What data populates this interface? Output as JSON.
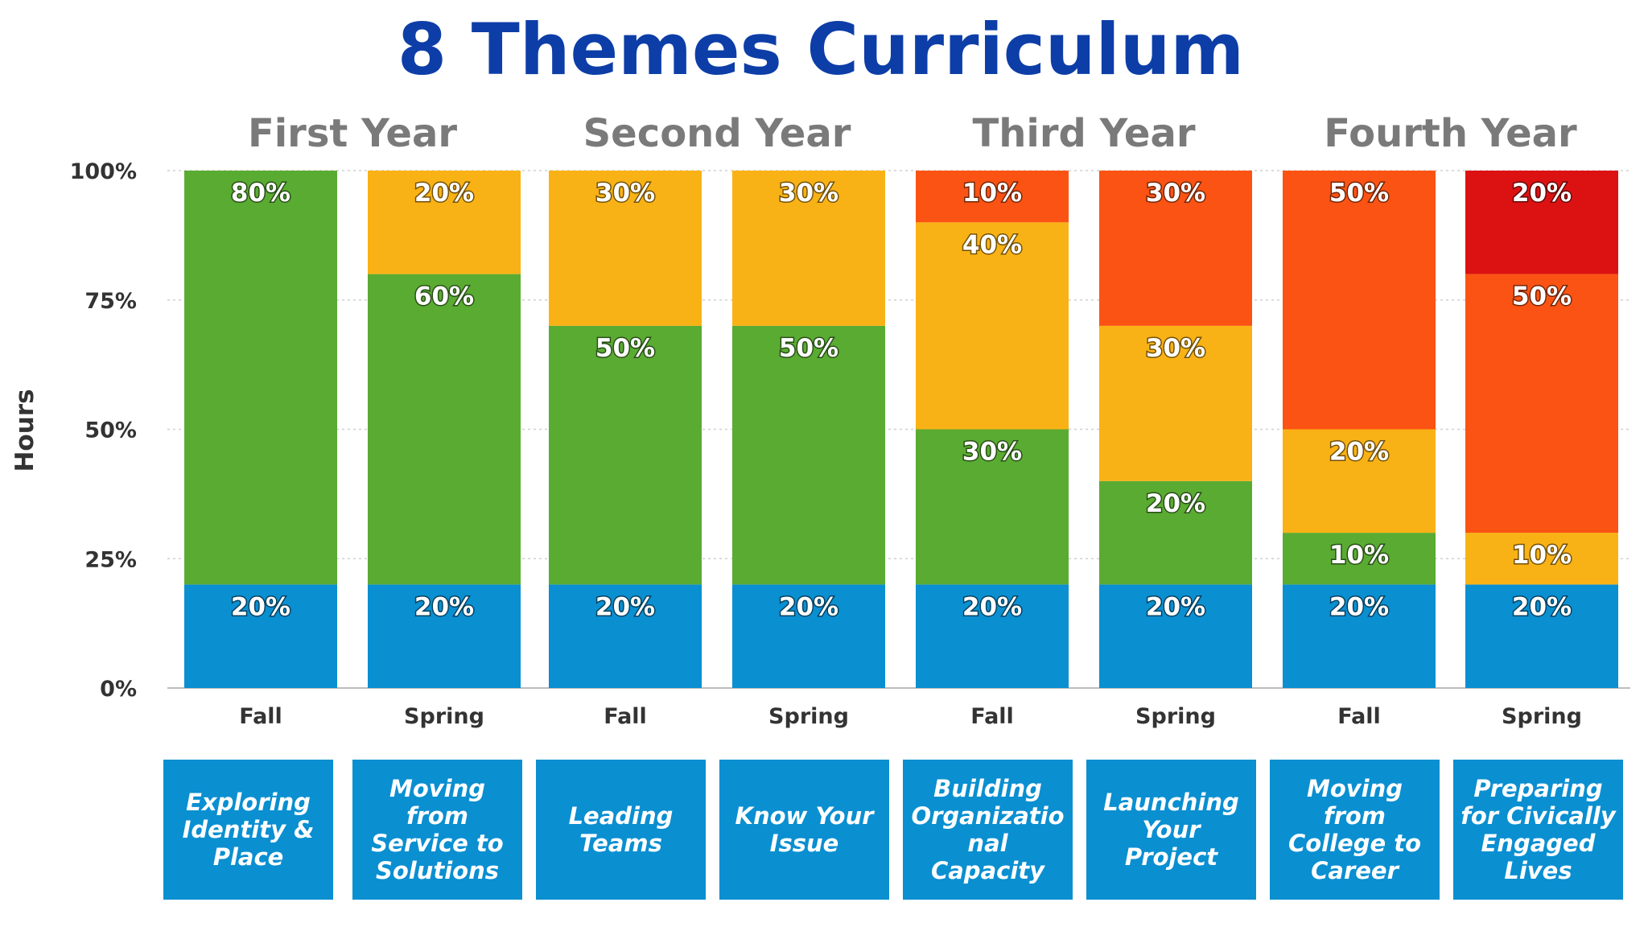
{
  "chart_data": {
    "type": "bar",
    "stacked": true,
    "title": "8 Themes Curriculum",
    "ylabel": "Hours",
    "ylim": [
      0,
      100
    ],
    "yticks": [
      "0%",
      "25%",
      "50%",
      "75%",
      "100%"
    ],
    "categories": [
      "Fall",
      "Spring",
      "Fall",
      "Spring",
      "Fall",
      "Spring",
      "Fall",
      "Spring"
    ],
    "groups": [
      "First Year",
      "Second Year",
      "Third Year",
      "Fourth Year"
    ],
    "themes": [
      "Exploring Identity & Place",
      "Moving from Service to Solutions",
      "Leading Teams",
      "Know Your Issue",
      "Building Organizational Capacity",
      "Launching Your Project",
      "Moving from College to Career",
      "Preparing for Civically Engaged Lives"
    ],
    "series": [
      {
        "color": "#0a8fd1",
        "values": [
          20,
          20,
          20,
          20,
          20,
          20,
          20,
          20
        ]
      },
      {
        "color": "#5aab32",
        "values": [
          80,
          60,
          50,
          50,
          30,
          20,
          10,
          0
        ]
      },
      {
        "color": "#f9b215",
        "values": [
          0,
          20,
          30,
          30,
          40,
          30,
          20,
          10
        ]
      },
      {
        "color": "#fb5313",
        "values": [
          0,
          0,
          0,
          0,
          10,
          30,
          50,
          50
        ]
      },
      {
        "color": "#dc1212",
        "values": [
          0,
          0,
          0,
          0,
          0,
          0,
          0,
          20
        ]
      }
    ],
    "colors": {
      "title": "#0d3ea8",
      "theme_box": "#0a8fd1"
    }
  }
}
